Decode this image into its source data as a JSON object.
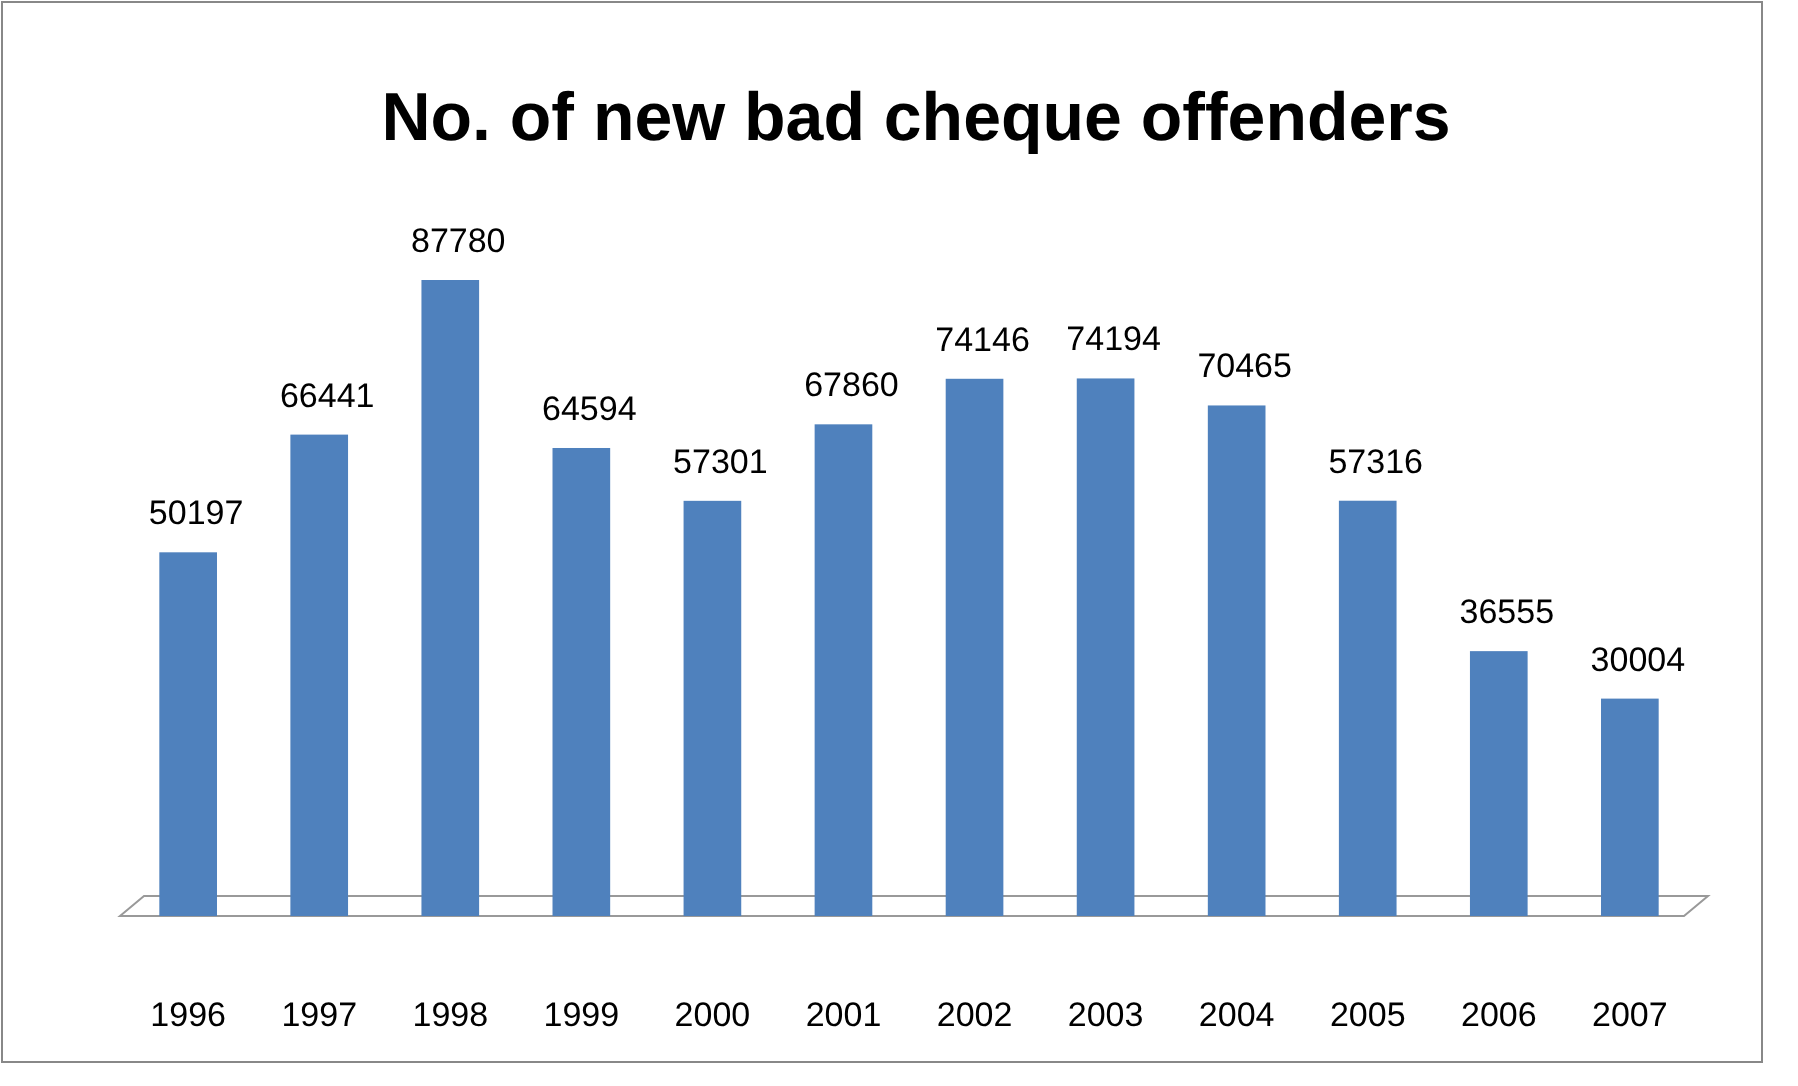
{
  "chart_data": {
    "type": "bar",
    "title": "No. of new bad cheque offenders",
    "categories": [
      "1996",
      "1997",
      "1998",
      "1999",
      "2000",
      "2001",
      "2002",
      "2003",
      "2004",
      "2005",
      "2006",
      "2007"
    ],
    "values": [
      50197,
      66441,
      87780,
      64594,
      57301,
      67860,
      74146,
      74194,
      70465,
      57316,
      36555,
      30004
    ],
    "color": "#4f81bd",
    "data_labels": true,
    "tick_labels": "x"
  }
}
